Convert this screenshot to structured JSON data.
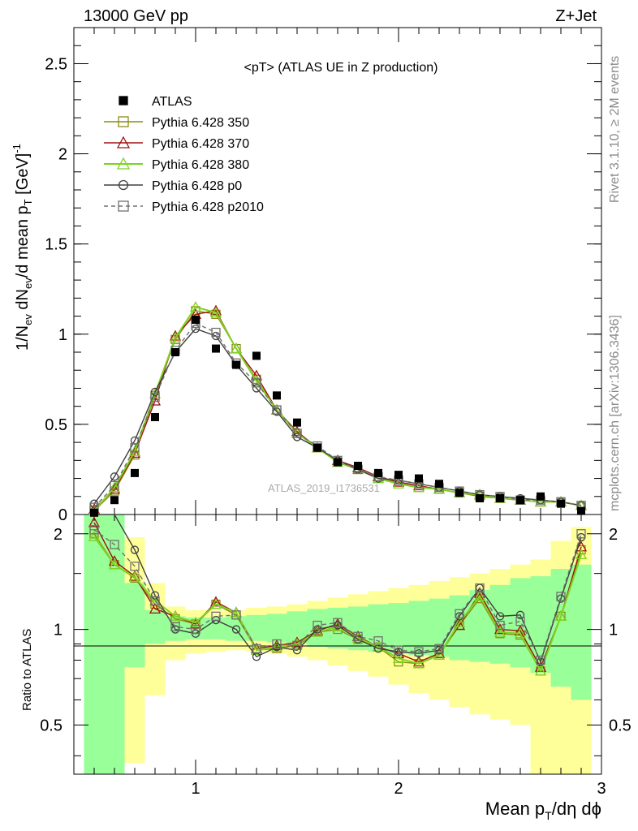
{
  "header": {
    "left": "13000 GeV pp",
    "right": "Z+Jet"
  },
  "plot_title": "<pT> (ATLAS UE in Z production)",
  "watermark": "ATLAS_2019_I1736531",
  "side_labels": {
    "rivet": "Rivet 3.1.10, ≥ 2M events",
    "mcplots": "mcplots.cern.ch [arXiv:1306.3436]"
  },
  "axes": {
    "x_label": "Mean p_T/dη dϕ",
    "y_label_main": "1/N_ev dN_ev/d mean p_T [GeV]^-1",
    "y_label_ratio": "Ratio to ATLAS",
    "x_ticks": [
      "1",
      "2",
      "3"
    ],
    "y_ticks_main": [
      "0",
      "0.5",
      "1",
      "1.5",
      "2",
      "2.5"
    ],
    "y_ticks_ratio": [
      "0.5",
      "1",
      "2"
    ]
  },
  "legend": [
    {
      "label": "ATLAS",
      "color": "#000000",
      "marker": "filled-square",
      "dash": false
    },
    {
      "label": "Pythia 6.428 350",
      "color": "#8b8b16",
      "marker": "open-square",
      "dash": false
    },
    {
      "label": "Pythia 6.428 370",
      "color": "#a01010",
      "marker": "open-triangle",
      "dash": false
    },
    {
      "label": "Pythia 6.428 380",
      "color": "#7ed321",
      "marker": "open-triangle",
      "dash": false
    },
    {
      "label": "Pythia 6.428 p0",
      "color": "#404040",
      "marker": "open-circle",
      "dash": false
    },
    {
      "label": "Pythia 6.428 p2010",
      "color": "#707070",
      "marker": "open-square",
      "dash": true
    }
  ],
  "chart_data": {
    "type": "line",
    "title": "<pT> (ATLAS UE in Z production)",
    "xlabel": "Mean p_T/dη dϕ",
    "ylabel": "1/N_ev dN_ev/d mean p_T [GeV]^-1",
    "xlim": [
      0.4,
      3.0
    ],
    "ylim": [
      0,
      2.7
    ],
    "ratio_ylim": [
      0.35,
      2.3
    ],
    "ratio_log": true,
    "x": [
      0.5,
      0.6,
      0.7,
      0.8,
      0.9,
      1.0,
      1.1,
      1.2,
      1.3,
      1.4,
      1.5,
      1.6,
      1.7,
      1.8,
      1.9,
      2.0,
      2.1,
      2.2,
      2.3,
      2.4,
      2.5,
      2.6,
      2.7,
      2.8,
      2.9
    ],
    "data": {
      "name": "ATLAS",
      "values": [
        0.01,
        0.08,
        0.23,
        0.54,
        0.9,
        1.08,
        0.92,
        0.83,
        0.88,
        0.66,
        0.51,
        0.37,
        0.29,
        0.27,
        0.23,
        0.22,
        0.2,
        0.17,
        0.12,
        0.09,
        0.09,
        0.08,
        0.1,
        0.06,
        0.02
      ]
    },
    "band_green": {
      "lo": [
        0.3,
        0.3,
        0.76,
        0.9,
        0.92,
        0.93,
        0.93,
        0.92,
        0.92,
        0.91,
        0.9,
        0.88,
        0.87,
        0.86,
        0.85,
        0.84,
        0.83,
        0.82,
        0.8,
        0.79,
        0.78,
        0.76,
        0.73,
        0.66,
        0.6
      ],
      "hi": [
        2.3,
        2.3,
        1.4,
        1.15,
        1.1,
        1.09,
        1.09,
        1.1,
        1.11,
        1.12,
        1.14,
        1.16,
        1.17,
        1.18,
        1.2,
        1.21,
        1.23,
        1.25,
        1.28,
        1.33,
        1.38,
        1.45,
        1.47,
        1.55,
        1.6
      ]
    },
    "band_yellow": {
      "lo": [
        0.3,
        0.3,
        0.38,
        0.62,
        0.8,
        0.84,
        0.85,
        0.86,
        0.85,
        0.84,
        0.82,
        0.8,
        0.77,
        0.74,
        0.71,
        0.67,
        0.63,
        0.6,
        0.57,
        0.54,
        0.52,
        0.5,
        0.35,
        0.35,
        0.35
      ],
      "hi": [
        2.3,
        2.3,
        1.95,
        1.4,
        1.18,
        1.15,
        1.15,
        1.15,
        1.17,
        1.18,
        1.2,
        1.23,
        1.26,
        1.29,
        1.32,
        1.35,
        1.38,
        1.42,
        1.46,
        1.5,
        1.55,
        1.6,
        1.66,
        1.9,
        2.1
      ]
    },
    "series": [
      {
        "name": "Pythia 6.428 350",
        "values": [
          0.02,
          0.13,
          0.33,
          0.66,
          0.97,
          1.13,
          1.11,
          0.92,
          0.75,
          0.58,
          0.45,
          0.37,
          0.29,
          0.25,
          0.2,
          0.18,
          0.15,
          0.14,
          0.12,
          0.1,
          0.09,
          0.08,
          0.07,
          0.07,
          0.05
        ]
      },
      {
        "name": "Pythia 6.428 370",
        "values": [
          0.03,
          0.14,
          0.34,
          0.63,
          0.99,
          1.11,
          1.13,
          0.92,
          0.77,
          0.58,
          0.46,
          0.37,
          0.3,
          0.26,
          0.21,
          0.18,
          0.16,
          0.14,
          0.12,
          0.11,
          0.09,
          0.08,
          0.07,
          0.07,
          0.05
        ]
      },
      {
        "name": "Pythia 6.428 380",
        "values": [
          0.02,
          0.15,
          0.35,
          0.67,
          0.98,
          1.15,
          1.12,
          0.92,
          0.74,
          0.58,
          0.45,
          0.37,
          0.29,
          0.25,
          0.2,
          0.17,
          0.15,
          0.14,
          0.12,
          0.11,
          0.09,
          0.08,
          0.07,
          0.07,
          0.05
        ]
      },
      {
        "name": "Pythia 6.428 p0",
        "values": [
          0.06,
          0.21,
          0.41,
          0.68,
          0.9,
          1.03,
          0.99,
          0.83,
          0.7,
          0.57,
          0.43,
          0.37,
          0.3,
          0.25,
          0.2,
          0.19,
          0.17,
          0.15,
          0.13,
          0.11,
          0.1,
          0.09,
          0.08,
          0.07,
          0.05
        ]
      },
      {
        "name": "Pythia 6.428 p2010",
        "values": [
          0.04,
          0.16,
          0.37,
          0.65,
          0.91,
          1.06,
          1.01,
          0.84,
          0.73,
          0.58,
          0.45,
          0.38,
          0.3,
          0.25,
          0.21,
          0.19,
          0.17,
          0.15,
          0.13,
          0.11,
          0.1,
          0.08,
          0.08,
          0.07,
          0.05
        ]
      }
    ],
    "ratio_series": [
      {
        "name": "Pythia 6.428 350",
        "values": [
          2.0,
          1.6,
          1.45,
          1.2,
          1.08,
          1.04,
          1.2,
          1.11,
          0.86,
          0.87,
          0.89,
          0.98,
          1.0,
          0.93,
          0.88,
          0.79,
          0.78,
          0.83,
          1.03,
          1.25,
          0.97,
          0.96,
          0.74,
          1.1,
          1.78
        ]
      },
      {
        "name": "Pythia 6.428 370",
        "values": [
          2.17,
          1.64,
          1.47,
          1.16,
          1.1,
          1.04,
          1.22,
          1.13,
          0.87,
          0.89,
          0.91,
          0.99,
          1.04,
          0.95,
          0.88,
          0.84,
          0.79,
          0.84,
          1.03,
          1.3,
          1.0,
          0.99,
          0.76,
          1.1,
          1.82
        ]
      },
      {
        "name": "Pythia 6.428 380",
        "values": [
          1.96,
          1.6,
          1.46,
          1.23,
          1.1,
          1.05,
          1.2,
          1.13,
          0.86,
          0.88,
          0.9,
          0.98,
          1.02,
          0.94,
          0.88,
          0.81,
          0.78,
          0.83,
          1.05,
          1.27,
          0.98,
          0.97,
          0.74,
          1.1,
          1.72
        ]
      },
      {
        "name": "Pythia 6.428 p0",
        "values": [
          2.3,
          2.3,
          1.78,
          1.28,
          1.0,
          0.97,
          1.07,
          1.0,
          0.82,
          0.88,
          0.86,
          1.0,
          1.03,
          0.93,
          0.87,
          0.85,
          0.84,
          0.86,
          1.1,
          1.35,
          1.1,
          1.11,
          0.79,
          1.25,
          1.95
        ]
      },
      {
        "name": "Pythia 6.428 p2010",
        "values": [
          2.06,
          1.85,
          1.58,
          1.23,
          1.02,
          1.0,
          1.1,
          1.11,
          0.87,
          0.9,
          0.89,
          1.03,
          1.05,
          0.95,
          0.92,
          0.86,
          0.85,
          0.87,
          1.12,
          1.35,
          1.03,
          1.06,
          0.8,
          1.27,
          2.0
        ]
      }
    ]
  }
}
